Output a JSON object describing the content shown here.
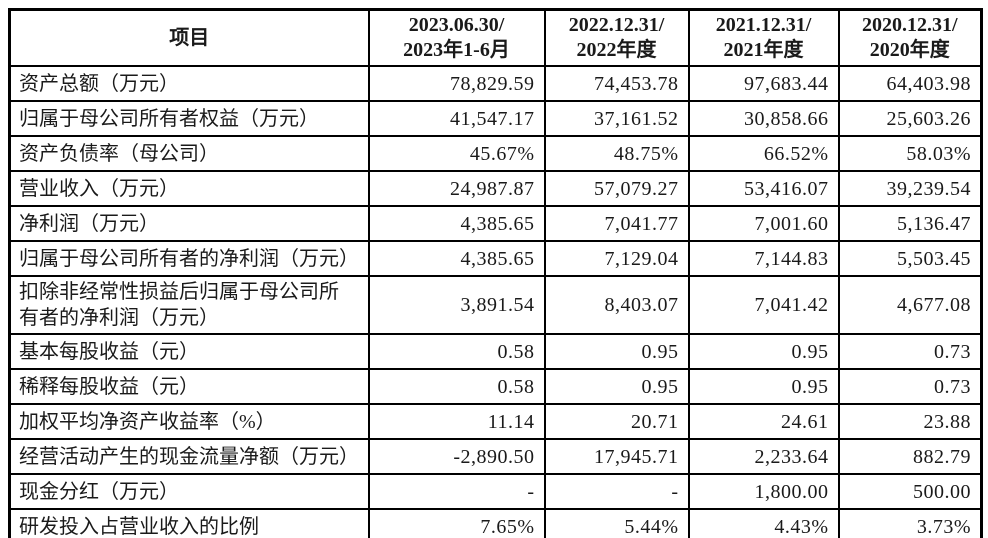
{
  "table": {
    "item_header": "项目",
    "columns": [
      {
        "line1": "2023.06.30/",
        "line2": "2023年1-6月"
      },
      {
        "line1": "2022.12.31/",
        "line2": "2022年度"
      },
      {
        "line1": "2021.12.31/",
        "line2": "2021年度"
      },
      {
        "line1": "2020.12.31/",
        "line2": "2020年度"
      }
    ],
    "rows": [
      {
        "label": "资产总额（万元）",
        "values": [
          "78,829.59",
          "74,453.78",
          "97,683.44",
          "64,403.98"
        ]
      },
      {
        "label": "归属于母公司所有者权益（万元）",
        "values": [
          "41,547.17",
          "37,161.52",
          "30,858.66",
          "25,603.26"
        ]
      },
      {
        "label": "资产负债率（母公司）",
        "values": [
          "45.67%",
          "48.75%",
          "66.52%",
          "58.03%"
        ]
      },
      {
        "label": "营业收入（万元）",
        "values": [
          "24,987.87",
          "57,079.27",
          "53,416.07",
          "39,239.54"
        ]
      },
      {
        "label": "净利润（万元）",
        "values": [
          "4,385.65",
          "7,041.77",
          "7,001.60",
          "5,136.47"
        ]
      },
      {
        "label": "归属于母公司所有者的净利润（万元）",
        "values": [
          "4,385.65",
          "7,129.04",
          "7,144.83",
          "5,503.45"
        ]
      },
      {
        "label": "扣除非经常性损益后归属于母公司所有者的净利润（万元）",
        "values": [
          "3,891.54",
          "8,403.07",
          "7,041.42",
          "4,677.08"
        ]
      },
      {
        "label": "基本每股收益（元）",
        "values": [
          "0.58",
          "0.95",
          "0.95",
          "0.73"
        ]
      },
      {
        "label": "稀释每股收益（元）",
        "values": [
          "0.58",
          "0.95",
          "0.95",
          "0.73"
        ]
      },
      {
        "label": "加权平均净资产收益率（%）",
        "values": [
          "11.14",
          "20.71",
          "24.61",
          "23.88"
        ]
      },
      {
        "label": "经营活动产生的现金流量净额（万元）",
        "values": [
          "-2,890.50",
          "17,945.71",
          "2,233.64",
          "882.79"
        ]
      },
      {
        "label": "现金分红（万元）",
        "values": [
          "-",
          "-",
          "1,800.00",
          "500.00"
        ]
      },
      {
        "label": "研发投入占营业收入的比例",
        "values": [
          "7.65%",
          "5.44%",
          "4.43%",
          "3.73%"
        ]
      }
    ]
  }
}
